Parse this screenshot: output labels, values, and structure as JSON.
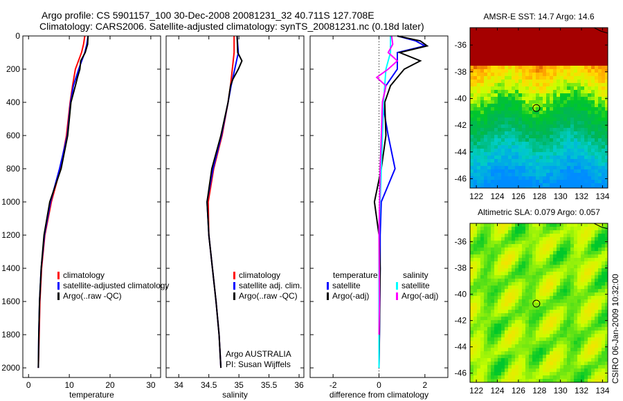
{
  "title": {
    "line1": "Argo profile: CS 5901157_100 30-Dec-2008 20081231_32 40.711S 127.708E",
    "line2": "Climatology: CARS2006. Satellite-adjusted climatology: synTS_20081231.nc (0.18d later)"
  },
  "side_stamp": "CSIRO 06-Jan-2009 10:32:00",
  "colors": {
    "red": "#ff0000",
    "blue": "#0000ff",
    "black": "#000000",
    "cyan": "#00ffff",
    "magenta": "#ff00ff"
  },
  "chart_data": [
    {
      "type": "line",
      "xlabel": "temperature",
      "ylabel": "",
      "xlim": [
        -1.4,
        32.4
      ],
      "ylim": [
        2058,
        0
      ],
      "xticks": [
        "0",
        "10",
        "20",
        "30"
      ],
      "xtick_values": [
        0,
        10,
        20,
        30
      ],
      "yticks": [
        "0",
        "200",
        "400",
        "600",
        "800",
        "1000",
        "1200",
        "1400",
        "1600",
        "1800",
        "2000"
      ],
      "ytick_values": [
        0,
        200,
        400,
        600,
        800,
        1000,
        1200,
        1400,
        1600,
        1800,
        2000
      ],
      "legend": [
        "climatology",
        "satellite-adjusted climatology",
        "Argo(..raw -QC)"
      ],
      "series": [
        {
          "name": "climatology",
          "color": "#ff0000",
          "depth": [
            0,
            50,
            100,
            200,
            300,
            400,
            600,
            800,
            1000,
            1200,
            1400,
            1600,
            1800,
            2000
          ],
          "values": [
            13.8,
            13.5,
            13.0,
            11.5,
            10.8,
            10.2,
            9.3,
            7.8,
            5.6,
            4.0,
            3.2,
            2.8,
            2.6,
            2.4
          ]
        },
        {
          "name": "satellite-adjusted climatology",
          "color": "#0000ff",
          "depth": [
            0,
            50,
            100,
            200,
            300,
            400,
            600,
            800,
            1000,
            1200,
            1400,
            1600,
            1800,
            2000
          ],
          "values": [
            14.6,
            14.3,
            13.8,
            12.3,
            11.0,
            10.3,
            9.5,
            7.6,
            5.4,
            3.9,
            3.1,
            2.7,
            2.5,
            2.4
          ]
        },
        {
          "name": "Argo(..raw -QC)",
          "color": "#000000",
          "depth": [
            0,
            50,
            100,
            150,
            200,
            250,
            300,
            400,
            600,
            800,
            1000,
            1200,
            1400,
            1600,
            1800,
            2000
          ],
          "values": [
            14.6,
            14.5,
            13.9,
            12.8,
            12.6,
            12.0,
            11.5,
            10.4,
            9.6,
            8.0,
            5.2,
            3.8,
            3.1,
            2.7,
            2.5,
            2.4
          ]
        }
      ]
    },
    {
      "type": "line",
      "xlabel": "salinity",
      "xlim": [
        33.79,
        36.08
      ],
      "ylim": [
        2058,
        0
      ],
      "xticks": [
        "34",
        "34.5",
        "35",
        "35.5",
        "36"
      ],
      "xtick_values": [
        34,
        34.5,
        35,
        35.5,
        36
      ],
      "legend": [
        "climatology",
        "satellite adj. clim.",
        "Argo(..raw -QC)"
      ],
      "annotation": [
        "Argo AUSTRALIA",
        "PI: Susan Wijffels"
      ],
      "series": [
        {
          "name": "climatology",
          "color": "#ff0000",
          "depth": [
            0,
            100,
            200,
            300,
            400,
            600,
            800,
            1000,
            1200,
            1400,
            1600,
            1800,
            2000
          ],
          "values": [
            34.92,
            34.92,
            34.89,
            34.86,
            34.82,
            34.72,
            34.58,
            34.49,
            34.5,
            34.56,
            34.62,
            34.67,
            34.7
          ]
        },
        {
          "name": "satellite adj. clim.",
          "color": "#0000ff",
          "depth": [
            0,
            100,
            200,
            300,
            400,
            600,
            800,
            1000,
            1200,
            1400,
            1600,
            1800,
            2000
          ],
          "values": [
            34.97,
            34.99,
            34.93,
            34.87,
            34.82,
            34.71,
            34.57,
            34.47,
            34.5,
            34.56,
            34.62,
            34.67,
            34.7
          ]
        },
        {
          "name": "Argo(..raw -QC)",
          "color": "#000000",
          "depth": [
            0,
            100,
            150,
            200,
            260,
            300,
            400,
            600,
            800,
            1000,
            1200,
            1400,
            1600,
            1800,
            2000
          ],
          "values": [
            34.97,
            34.98,
            35.05,
            34.99,
            34.9,
            34.86,
            34.82,
            34.7,
            34.55,
            34.47,
            34.5,
            34.56,
            34.62,
            34.67,
            34.7
          ]
        }
      ]
    },
    {
      "type": "line",
      "xlabel": "difference from climatology",
      "xlim": [
        -3,
        3
      ],
      "ylim": [
        2058,
        0
      ],
      "xticks": [
        "-2",
        "0",
        "2"
      ],
      "xtick_values": [
        -2,
        0,
        2
      ],
      "legend_left_title": "temperature",
      "legend_right_title": "salinity",
      "legend": [
        "satellite",
        "Argo(-adj)",
        "satellite",
        "Argo(-adj)"
      ],
      "series": [
        {
          "name": "temperature satellite",
          "color": "#0000ff",
          "depth": [
            0,
            30,
            60,
            100,
            200,
            300,
            400,
            600,
            800,
            1000,
            1200,
            1400,
            1800,
            2000
          ],
          "values": [
            0.8,
            1.6,
            2.0,
            0.8,
            0.8,
            0.3,
            0.15,
            0.4,
            0.7,
            0.1,
            0.05,
            0.05,
            0.02,
            0.0
          ]
        },
        {
          "name": "temperature Argo(-adj)",
          "color": "#000000",
          "depth": [
            0,
            30,
            60,
            100,
            150,
            200,
            250,
            300,
            400,
            600,
            800,
            1000,
            1100,
            1200,
            1400,
            2000
          ],
          "values": [
            0.8,
            1.8,
            2.1,
            0.9,
            1.8,
            1.1,
            0.8,
            0.5,
            0.25,
            0.3,
            0.1,
            -0.2,
            -0.1,
            0.0,
            0.05,
            0.0
          ]
        },
        {
          "name": "salinity satellite",
          "color": "#00ffff",
          "depth": [
            0,
            100,
            200,
            400,
            800,
            1200,
            1600,
            2000
          ],
          "values": [
            0.5,
            0.5,
            0.3,
            0.2,
            0.1,
            0.0,
            0.0,
            0.0
          ]
        },
        {
          "name": "salinity Argo(-adj)",
          "color": "#ff00ff",
          "depth": [
            0,
            50,
            100,
            150,
            200,
            250,
            300,
            400,
            800,
            1200,
            1600,
            1800
          ],
          "values": [
            0.55,
            0.6,
            0.4,
            0.8,
            0.4,
            -0.1,
            0.3,
            0.15,
            0.05,
            0.0,
            0.02,
            0.0
          ]
        }
      ]
    },
    {
      "type": "heatmap",
      "title": "AMSR-E SST: 14.7 Argo: 14.6",
      "xlim": [
        121.4,
        134.5
      ],
      "ylim": [
        -46.7,
        -34.7
      ],
      "xticks": [
        "122",
        "124",
        "126",
        "128",
        "130",
        "132",
        "134"
      ],
      "xtick_values": [
        122,
        124,
        126,
        128,
        130,
        132,
        134
      ],
      "yticks": [
        "-36",
        "-38",
        "-40",
        "-42",
        "-44",
        "-46"
      ],
      "ytick_values": [
        -36,
        -38,
        -40,
        -42,
        -44,
        -46
      ],
      "marker": {
        "lon": 127.708,
        "lat": -40.711
      }
    },
    {
      "type": "heatmap",
      "title": "Altimetric SLA: 0.079 Argo: 0.057",
      "xlim": [
        121.4,
        134.5
      ],
      "ylim": [
        -46.7,
        -34.6
      ],
      "xticks": [
        "122",
        "124",
        "126",
        "128",
        "130",
        "132",
        "134"
      ],
      "xtick_values": [
        122,
        124,
        126,
        128,
        130,
        132,
        134
      ],
      "yticks": [
        "-36",
        "-38",
        "-40",
        "-42",
        "-44",
        "-46"
      ],
      "ytick_values": [
        -36,
        -38,
        -40,
        -42,
        -44,
        -46
      ],
      "marker": {
        "lon": 127.708,
        "lat": -40.711
      }
    }
  ]
}
